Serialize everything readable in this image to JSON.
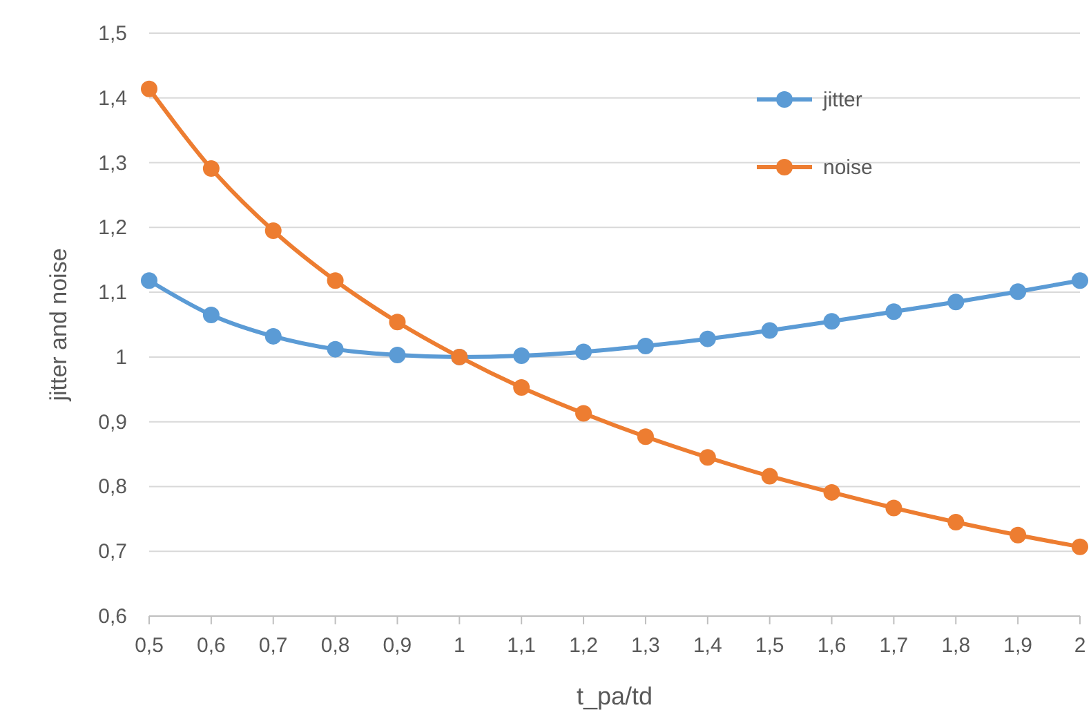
{
  "chart_data": {
    "type": "line",
    "xlabel": "t_pa/td",
    "ylabel": "jitter and noise",
    "x": [
      0.5,
      0.6,
      0.7,
      0.8,
      0.9,
      1,
      1.1,
      1.2,
      1.3,
      1.4,
      1.5,
      1.6,
      1.7,
      1.8,
      1.9,
      2
    ],
    "series": [
      {
        "name": "jitter",
        "color": "#5b9bd5",
        "values": [
          1.118,
          1.065,
          1.032,
          1.012,
          1.003,
          1,
          1.002,
          1.008,
          1.017,
          1.028,
          1.041,
          1.055,
          1.07,
          1.085,
          1.101,
          1.118
        ]
      },
      {
        "name": "noise",
        "color": "#ed7d31",
        "values": [
          1.414,
          1.291,
          1.195,
          1.118,
          1.054,
          1,
          0.953,
          0.913,
          0.877,
          0.845,
          0.816,
          0.791,
          0.767,
          0.745,
          0.725,
          0.707
        ]
      }
    ],
    "xlim": [
      0.5,
      2
    ],
    "xticks": [
      {
        "value": 0.5,
        "label": "0,5"
      },
      {
        "value": 0.6,
        "label": "0,6"
      },
      {
        "value": 0.7,
        "label": "0,7"
      },
      {
        "value": 0.8,
        "label": "0,8"
      },
      {
        "value": 0.9,
        "label": "0,9"
      },
      1,
      {
        "value": 1.1,
        "label": "1,1"
      },
      {
        "value": 1.2,
        "label": "1,2"
      },
      {
        "value": 1.3,
        "label": "1,3"
      },
      {
        "value": 1.4,
        "label": "1,4"
      },
      {
        "value": 1.5,
        "label": "1,5"
      },
      {
        "value": 1.6,
        "label": "1,6"
      },
      {
        "value": 1.7,
        "label": "1,7"
      },
      {
        "value": 1.8,
        "label": "1,8"
      },
      {
        "value": 1.9,
        "label": "1,9"
      },
      2
    ],
    "ylim": [
      0.6,
      1.5
    ],
    "yticks": [
      {
        "value": 0.6,
        "label": "0,6"
      },
      {
        "value": 0.7,
        "label": "0,7"
      },
      {
        "value": 0.8,
        "label": "0,8"
      },
      {
        "value": 0.9,
        "label": "0,9"
      },
      1,
      {
        "value": 1.1,
        "label": "1,1"
      },
      {
        "value": 1.2,
        "label": "1,2"
      },
      {
        "value": 1.3,
        "label": "1,3"
      },
      {
        "value": 1.4,
        "label": "1,4"
      },
      {
        "value": 1.5,
        "label": "1,5"
      }
    ],
    "grid": "y",
    "legend": "top right",
    "marker": "circle",
    "line_style": "solid"
  }
}
